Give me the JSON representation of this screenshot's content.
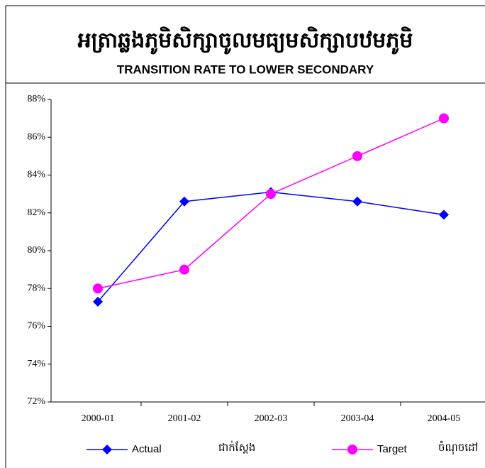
{
  "chart_data": {
    "type": "line",
    "title": "អត្រាឆ្លងភូមិសិក្សាចូលមធ្យមសិក្សាបឋមភូមិ",
    "subtitle": "TRANSITION RATE TO LOWER SECONDARY",
    "categories": [
      "2000-01",
      "2001-02",
      "2002-03",
      "2003-04",
      "2004-05"
    ],
    "series": [
      {
        "name": "Actual",
        "label_km": "ជាក់ស្តែង",
        "color": "#0000ff",
        "marker": "diamond",
        "values": [
          77.3,
          82.6,
          83.1,
          82.6,
          81.9
        ]
      },
      {
        "name": "Target",
        "label_km": "ចំណុចដៅ",
        "color": "#ff00ff",
        "marker": "circle",
        "values": [
          78,
          79,
          83,
          85,
          87
        ]
      }
    ],
    "ylim": [
      72,
      88
    ],
    "yticks": [
      {
        "value": 72,
        "label": "72%"
      },
      {
        "value": 74,
        "label": "74%"
      },
      {
        "value": 76,
        "label": "76%"
      },
      {
        "value": 78,
        "label": "78%"
      },
      {
        "value": 80,
        "label": "80%"
      },
      {
        "value": 82,
        "label": "82%"
      },
      {
        "value": 84,
        "label": "84%"
      },
      {
        "value": 86,
        "label": "86%"
      },
      {
        "value": 88,
        "label": "88%"
      }
    ],
    "legend": "bottom"
  }
}
